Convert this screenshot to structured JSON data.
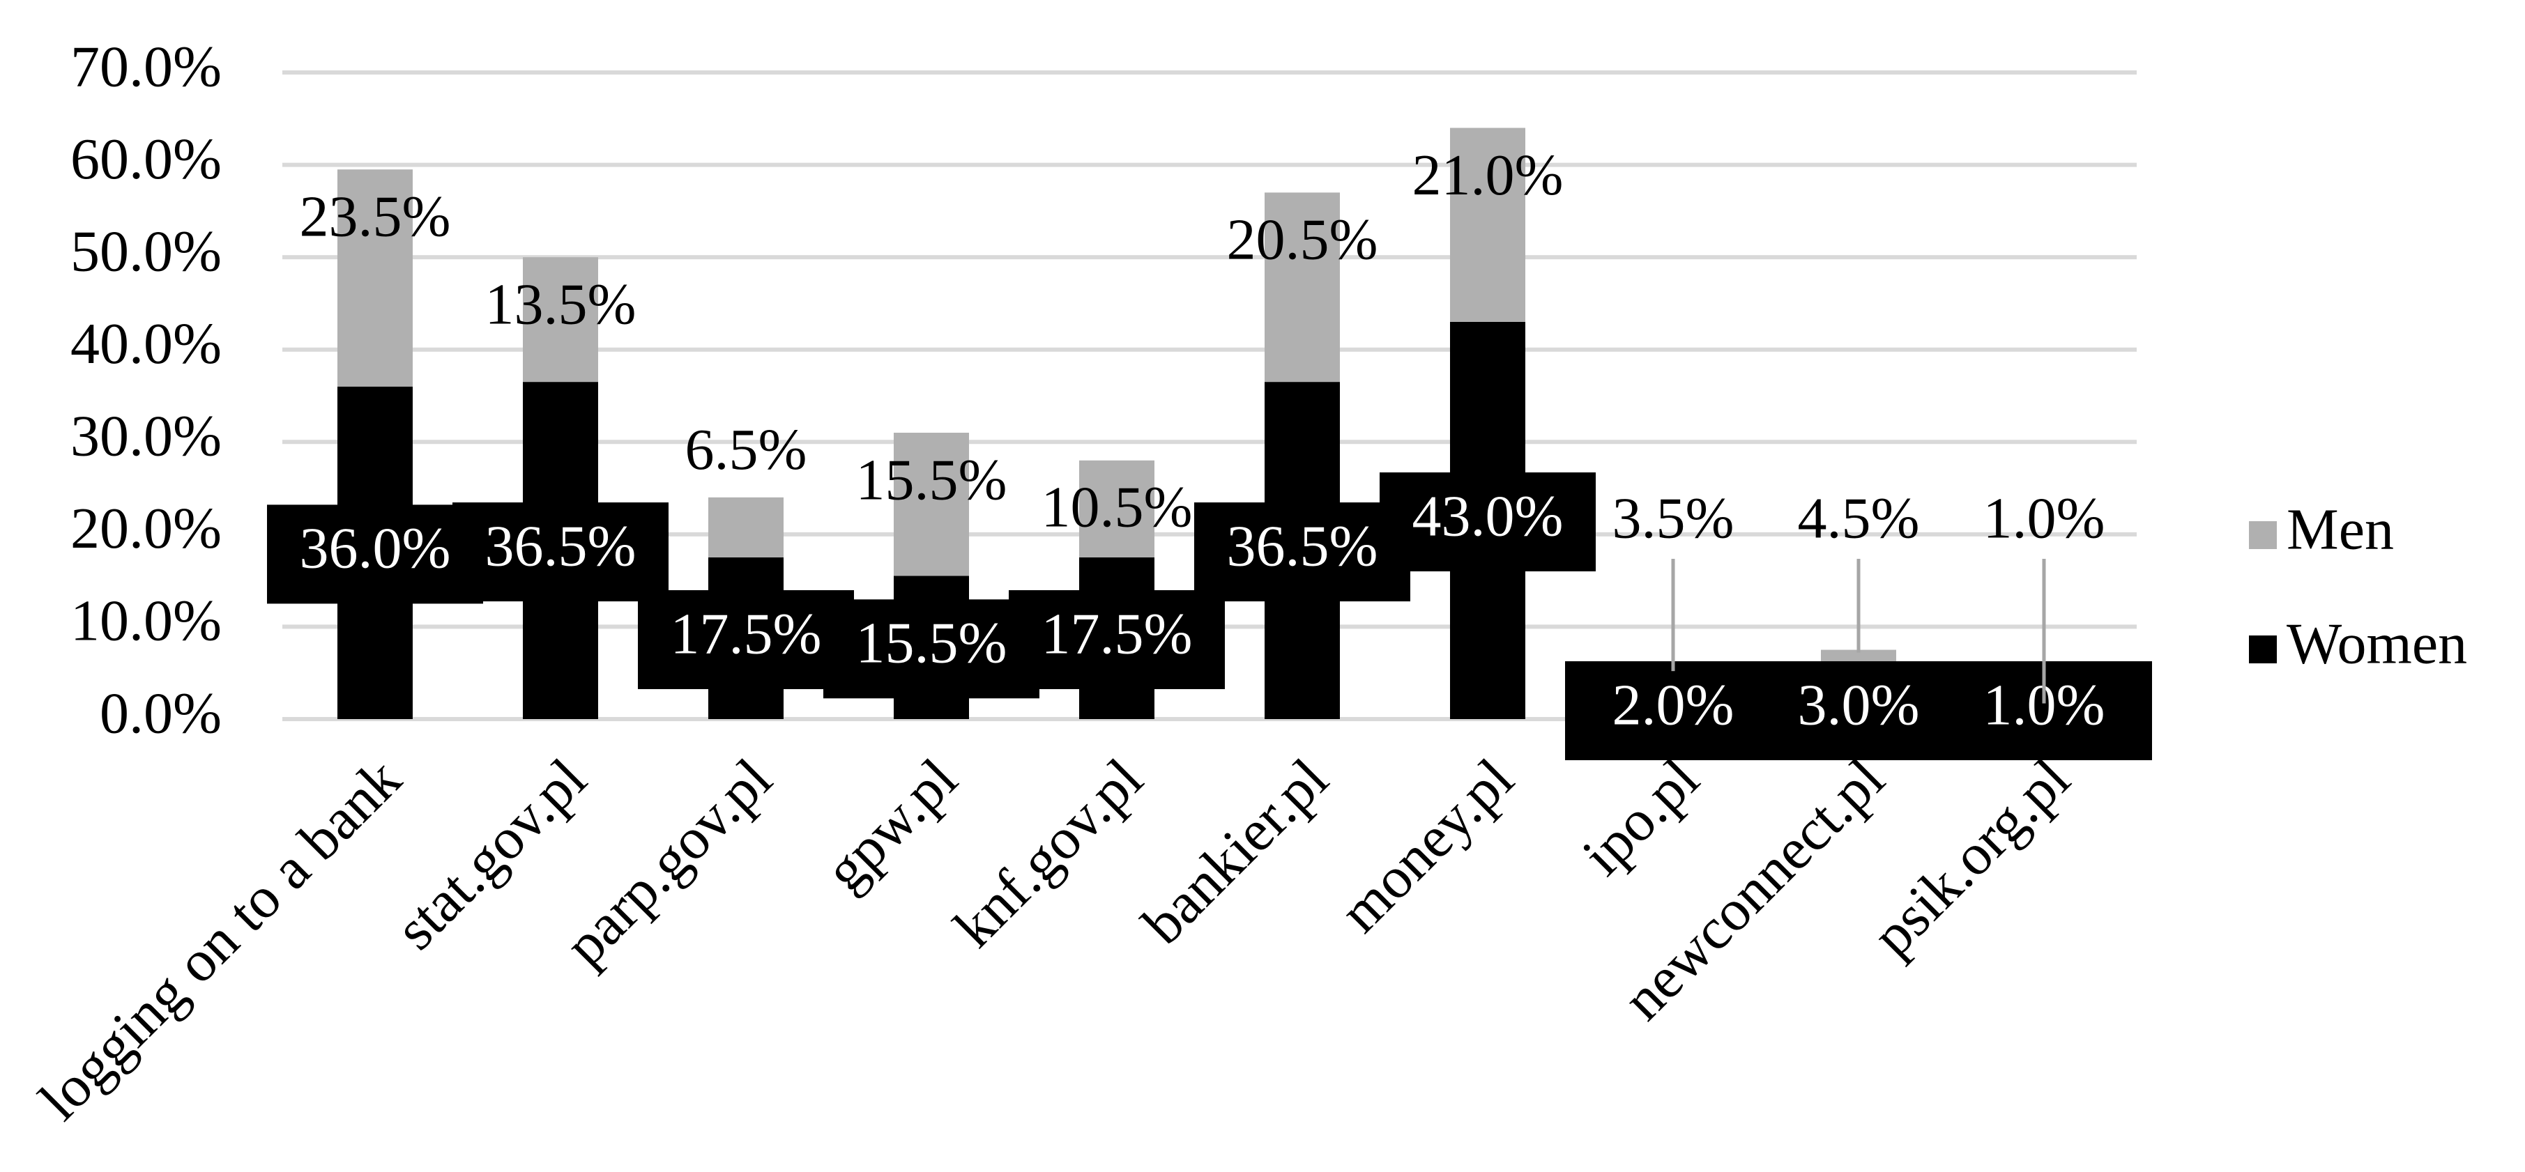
{
  "chart_data": {
    "type": "bar",
    "stacked": true,
    "categories": [
      "logging on to a bank",
      "stat.gov.pl",
      "parp.gov.pl",
      "gpw.pl",
      "knf.gov.pl",
      "bankier.pl",
      "money.pl",
      "ipo.pl",
      "newconnect.pl",
      "psik.org.pl"
    ],
    "series": [
      {
        "name": "Women",
        "color": "#000000",
        "values": [
          36.0,
          36.5,
          17.5,
          15.5,
          17.5,
          36.5,
          43.0,
          2.0,
          3.0,
          1.0
        ],
        "labels": [
          "36.0%",
          "36.5%",
          "17.5%",
          "15.5%",
          "17.5%",
          "36.5%",
          "43.0%",
          "2.0%",
          "3.0%",
          "1.0%"
        ]
      },
      {
        "name": "Men",
        "color": "#b0b0b0",
        "values": [
          23.5,
          13.5,
          6.5,
          15.5,
          10.5,
          20.5,
          21.0,
          3.5,
          4.5,
          1.0
        ],
        "labels": [
          "23.5%",
          "13.5%",
          "6.5%",
          "15.5%",
          "10.5%",
          "20.5%",
          "21.0%",
          "3.5%",
          "4.5%",
          "1.0%"
        ]
      }
    ],
    "ylim": [
      0,
      70
    ],
    "yticks": [
      0,
      10,
      20,
      30,
      40,
      50,
      60,
      70
    ],
    "ytick_labels": [
      "0.0%",
      "10.0%",
      "20.0%",
      "30.0%",
      "40.0%",
      "50.0%",
      "60.0%",
      "70.0%"
    ],
    "xlabel": "",
    "ylabel": "",
    "title": "",
    "grid": true,
    "gridline_color": "#d9d9d9",
    "legend": {
      "position": "right",
      "entries": [
        "Men",
        "Women"
      ]
    }
  }
}
